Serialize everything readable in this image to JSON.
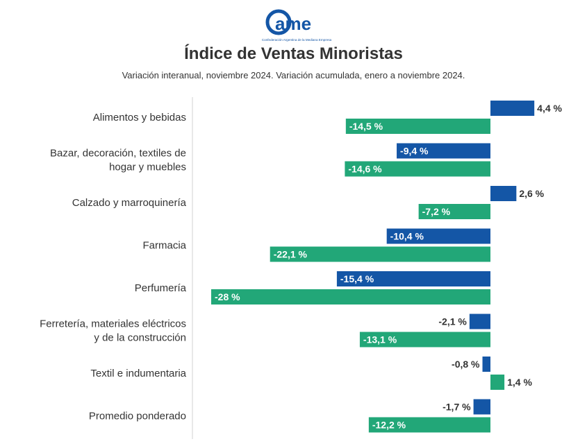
{
  "logo": {
    "text": "ame",
    "caption": "Confederación Argentina de la Mediana Empresa"
  },
  "chart_data": {
    "type": "bar",
    "orientation": "horizontal",
    "title": "Índice de Ventas Minoristas",
    "subtitle": "Variación interanual, noviembre 2024. Variación acumulada, enero a noviembre 2024.",
    "categories": [
      [
        "Alimentos y bebidas"
      ],
      [
        "Bazar, decoración, textiles de",
        "hogar y muebles"
      ],
      [
        "Calzado y marroquinería"
      ],
      [
        "Farmacia"
      ],
      [
        "Perfumería"
      ],
      [
        "Ferretería, materiales eléctricos",
        "y de la construcción"
      ],
      [
        "Textil e indumentaria"
      ],
      [
        "Promedio ponderado"
      ]
    ],
    "series": [
      {
        "color": "#1456a6",
        "values": [
          4.4,
          -9.4,
          2.6,
          -10.4,
          -15.4,
          -2.1,
          -0.8,
          -1.7
        ],
        "labels": [
          "4,4 %",
          "-9,4 %",
          "2,6 %",
          "-10,4 %",
          "-15,4 %",
          "-2,1 %",
          "-0,8 %",
          "-1,7 %"
        ]
      },
      {
        "color": "#22a778",
        "values": [
          -14.5,
          -14.6,
          -7.2,
          -22.1,
          -28,
          -13.1,
          1.4,
          -12.2
        ],
        "labels": [
          "-14,5 %",
          "-14,6 %",
          "-7,2 %",
          "-22,1 %",
          "-28 %",
          "-13,1 %",
          "1,4 %",
          "-12,2 %"
        ]
      }
    ],
    "xlim": [
      -28,
      4.4
    ],
    "grid": false,
    "legend": "none"
  }
}
